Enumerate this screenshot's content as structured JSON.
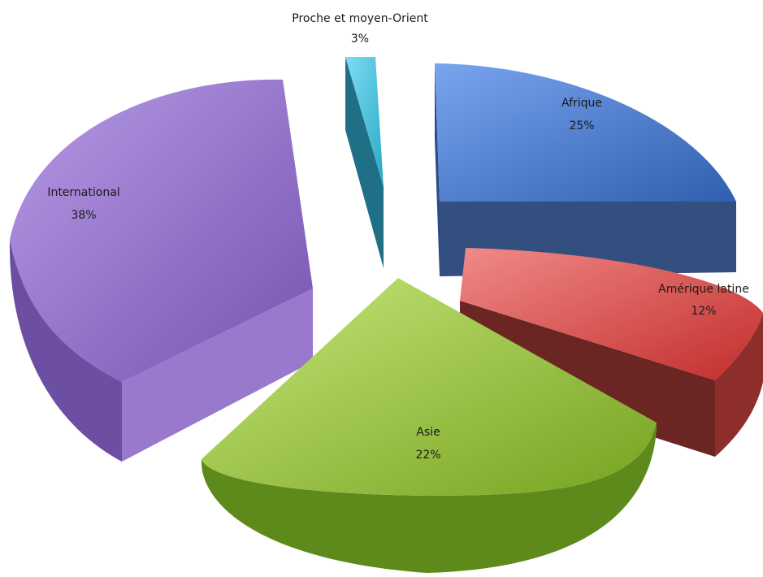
{
  "chart_data": {
    "type": "pie",
    "title": "",
    "slices": [
      {
        "label": "Afrique",
        "value": 25,
        "value_label": "25%",
        "color": "#4a7fd4"
      },
      {
        "label": "Amérique latine",
        "value": 12,
        "value_label": "12%",
        "color": "#e0504e"
      },
      {
        "label": "Asie",
        "value": 22,
        "value_label": "22%",
        "color": "#98c43a"
      },
      {
        "label": "International",
        "value": 38,
        "value_label": "38%",
        "color": "#8e6cc6"
      },
      {
        "label": "Proche et moyen-Orient",
        "value": 3,
        "value_label": "3%",
        "color": "#47c4e0"
      }
    ],
    "style": "3d-exploded"
  }
}
